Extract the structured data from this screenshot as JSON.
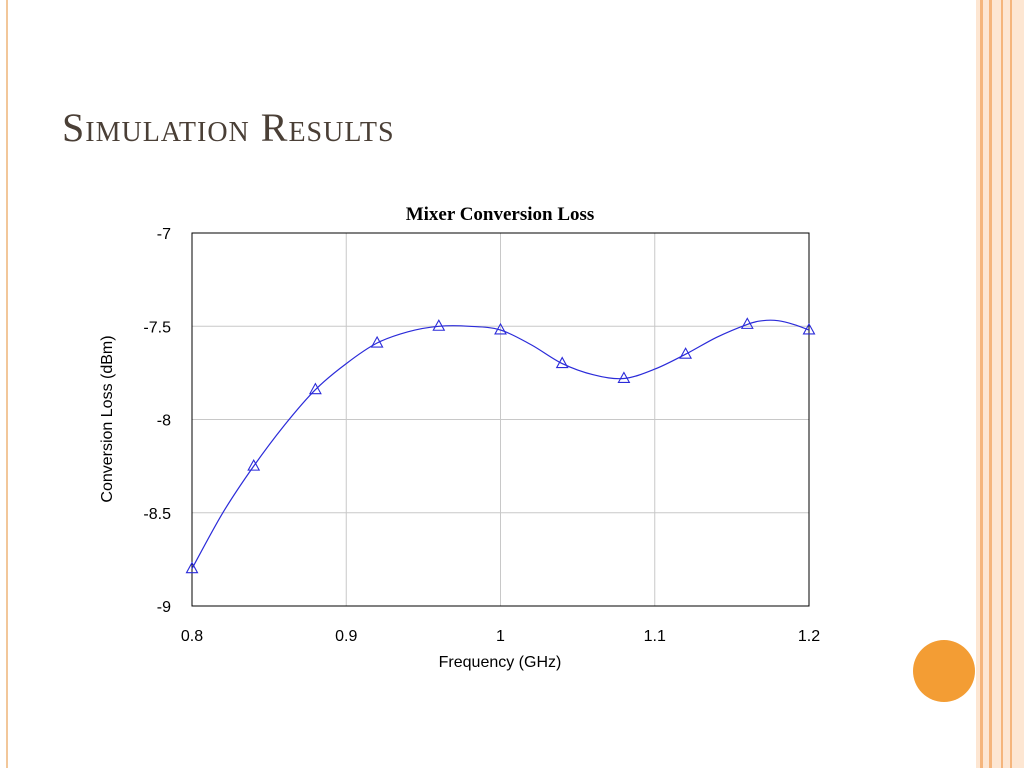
{
  "slide": {
    "title": "Simulation Results"
  },
  "colors": {
    "series": "#2b2bd9",
    "accent_orange": "#f39d34",
    "stripe": "#f5b57c",
    "grid": "#c8c8c8"
  },
  "chart_data": {
    "type": "line",
    "title": "Mixer Conversion Loss",
    "xlabel": "Frequency (GHz)",
    "ylabel": "Conversion Loss (dBm)",
    "xlim": [
      0.8,
      1.2
    ],
    "ylim": [
      -9,
      -7
    ],
    "xticks": [
      0.8,
      0.9,
      1,
      1.1,
      1.2
    ],
    "xtick_labels": [
      "0.8",
      "0.9",
      "1",
      "1.1",
      "1.2"
    ],
    "yticks": [
      -7,
      -7.5,
      -8,
      -8.5,
      -9
    ],
    "ytick_labels": [
      "-7",
      "-7.5",
      "-8",
      "-8.5",
      "-9"
    ],
    "grid": true,
    "legend": "none",
    "marker": "triangle",
    "series": [
      {
        "x": [
          0.8,
          0.84,
          0.88,
          0.92,
          0.96,
          1.0,
          1.04,
          1.08,
          1.12,
          1.16,
          1.2
        ],
        "values": [
          -8.8,
          -8.25,
          -7.84,
          -7.59,
          -7.5,
          -7.52,
          -7.7,
          -7.78,
          -7.65,
          -7.49,
          -7.52
        ]
      }
    ],
    "curve": {
      "x": [
        0.8,
        0.82,
        0.84,
        0.86,
        0.88,
        0.9,
        0.92,
        0.94,
        0.96,
        0.98,
        1.0,
        1.02,
        1.04,
        1.06,
        1.08,
        1.1,
        1.12,
        1.14,
        1.16,
        1.17,
        1.18,
        1.19,
        1.2
      ],
      "values": [
        -8.8,
        -8.5,
        -8.25,
        -8.03,
        -7.84,
        -7.7,
        -7.59,
        -7.53,
        -7.5,
        -7.5,
        -7.52,
        -7.6,
        -7.7,
        -7.76,
        -7.78,
        -7.73,
        -7.65,
        -7.56,
        -7.49,
        -7.47,
        -7.47,
        -7.49,
        -7.52
      ]
    }
  }
}
